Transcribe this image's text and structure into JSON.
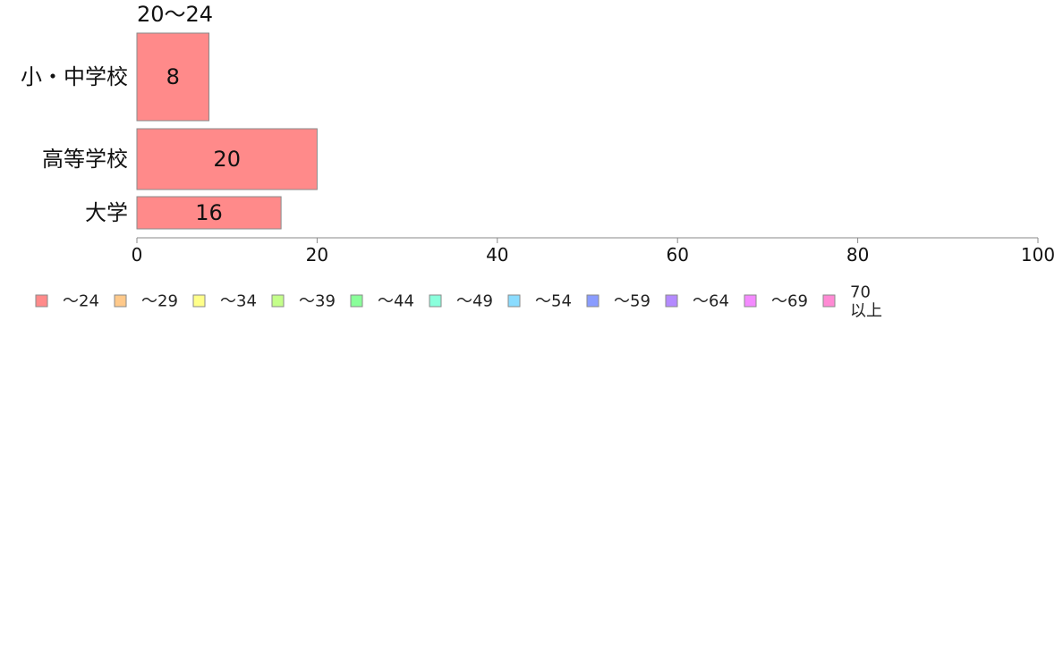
{
  "chart_data": {
    "type": "bar",
    "orientation": "horizontal",
    "stacked": true,
    "title": "20〜24",
    "categories": [
      "小・中学校",
      "高等学校",
      "大学"
    ],
    "series": [
      {
        "name": "〜24",
        "values": [
          8,
          20,
          16
        ],
        "color": "#ff8a8a"
      },
      {
        "name": "〜29",
        "values": [
          0,
          0,
          0
        ],
        "color": "#ffc98a"
      },
      {
        "name": "〜34",
        "values": [
          0,
          0,
          0
        ],
        "color": "#ffff8a"
      },
      {
        "name": "〜39",
        "values": [
          0,
          0,
          0
        ],
        "color": "#c4ff8a"
      },
      {
        "name": "〜44",
        "values": [
          0,
          0,
          0
        ],
        "color": "#8aff9a"
      },
      {
        "name": "〜49",
        "values": [
          0,
          0,
          0
        ],
        "color": "#8affdc"
      },
      {
        "name": "〜54",
        "values": [
          0,
          0,
          0
        ],
        "color": "#8adcff"
      },
      {
        "name": "〜59",
        "values": [
          0,
          0,
          0
        ],
        "color": "#8a9cff"
      },
      {
        "name": "〜64",
        "values": [
          0,
          0,
          0
        ],
        "color": "#b48aff"
      },
      {
        "name": "〜69",
        "values": [
          0,
          0,
          0
        ],
        "color": "#f48aff"
      },
      {
        "name": "70\n以上",
        "values": [
          0,
          0,
          0
        ],
        "color": "#ff8ad4"
      }
    ],
    "xlim": [
      0,
      100
    ],
    "xticks": [
      0,
      20,
      40,
      60,
      80,
      100
    ],
    "xlabel": "",
    "ylabel": "",
    "grid": false,
    "legend_position": "bottom",
    "bar_outline_color": "#8a8a8a",
    "axis_color": "#8a8a8a"
  }
}
